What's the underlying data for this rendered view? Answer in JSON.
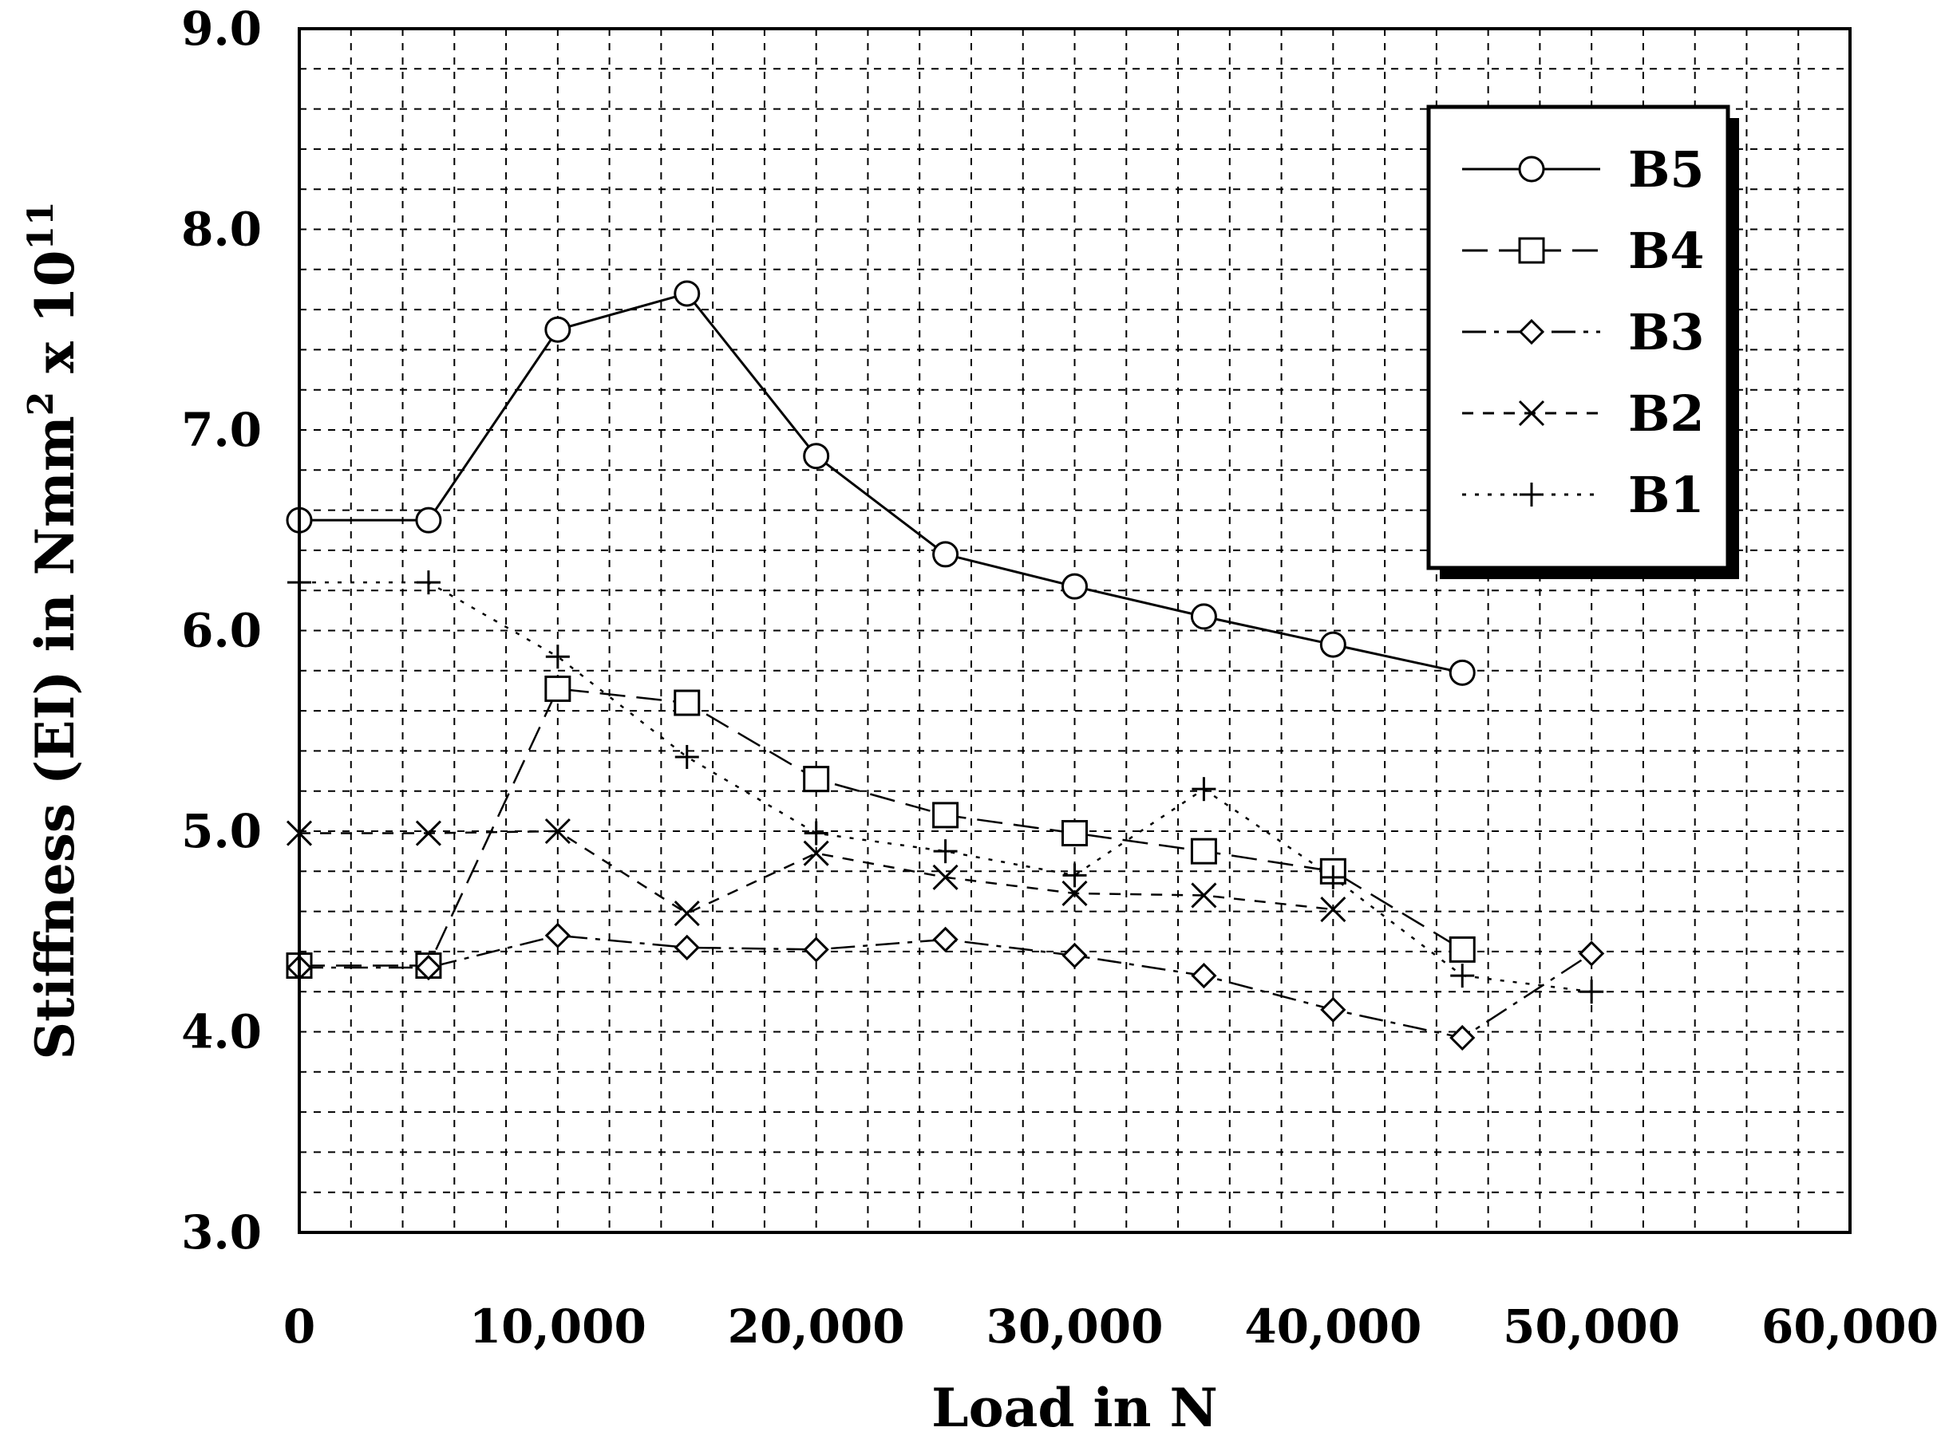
{
  "chart_data": {
    "type": "line",
    "xlabel": "Load in N",
    "ylabel": "Stiffness (EI) in Nmm",
    "ylabel_sup1": "2",
    "ylabel_mid": " x 10",
    "ylabel_sup2": "11",
    "xlim": [
      0,
      60000
    ],
    "ylim": [
      3.0,
      9.0
    ],
    "x_ticks": [
      0,
      10000,
      20000,
      30000,
      40000,
      50000,
      60000
    ],
    "x_tick_labels": [
      "0",
      "10,000",
      "20,000",
      "30,000",
      "40,000",
      "50,000",
      "60,000"
    ],
    "y_ticks": [
      3.0,
      4.0,
      5.0,
      6.0,
      7.0,
      8.0,
      9.0
    ],
    "y_tick_labels": [
      "3.0",
      "4.0",
      "5.0",
      "6.0",
      "7.0",
      "8.0",
      "9.0"
    ],
    "grid": true,
    "legend_position": "top-right",
    "series": [
      {
        "name": "B5",
        "marker": "circle",
        "line_style": "solid",
        "x": [
          0,
          5000,
          10000,
          15000,
          20000,
          25000,
          30000,
          35000,
          40000,
          45000
        ],
        "y": [
          6.55,
          6.55,
          7.5,
          7.68,
          6.87,
          6.38,
          6.22,
          6.07,
          5.93,
          5.79
        ]
      },
      {
        "name": "B4",
        "marker": "square",
        "line_style": "longdash",
        "x": [
          0,
          5000,
          10000,
          15000,
          20000,
          25000,
          30000,
          35000,
          40000,
          45000
        ],
        "y": [
          4.33,
          4.33,
          5.71,
          5.64,
          5.26,
          5.08,
          4.99,
          4.9,
          4.8,
          4.41
        ]
      },
      {
        "name": "B3",
        "marker": "diamond",
        "line_style": "dashdot",
        "x": [
          0,
          5000,
          10000,
          15000,
          20000,
          25000,
          30000,
          35000,
          40000,
          45000,
          50000
        ],
        "y": [
          4.32,
          4.32,
          4.48,
          4.42,
          4.41,
          4.46,
          4.38,
          4.28,
          4.11,
          3.97,
          4.39
        ]
      },
      {
        "name": "B2",
        "marker": "x",
        "line_style": "dash",
        "x": [
          0,
          5000,
          10000,
          15000,
          20000,
          25000,
          30000,
          35000,
          40000
        ],
        "y": [
          4.99,
          4.99,
          5.0,
          4.59,
          4.89,
          4.77,
          4.69,
          4.68,
          4.61
        ]
      },
      {
        "name": "B1",
        "marker": "plus",
        "line_style": "dot",
        "x": [
          0,
          5000,
          10000,
          15000,
          20000,
          25000,
          30000,
          35000,
          40000,
          45000,
          50000
        ],
        "y": [
          6.24,
          6.24,
          5.87,
          5.37,
          4.99,
          4.9,
          4.78,
          5.21,
          4.77,
          4.28,
          4.2
        ]
      }
    ]
  }
}
